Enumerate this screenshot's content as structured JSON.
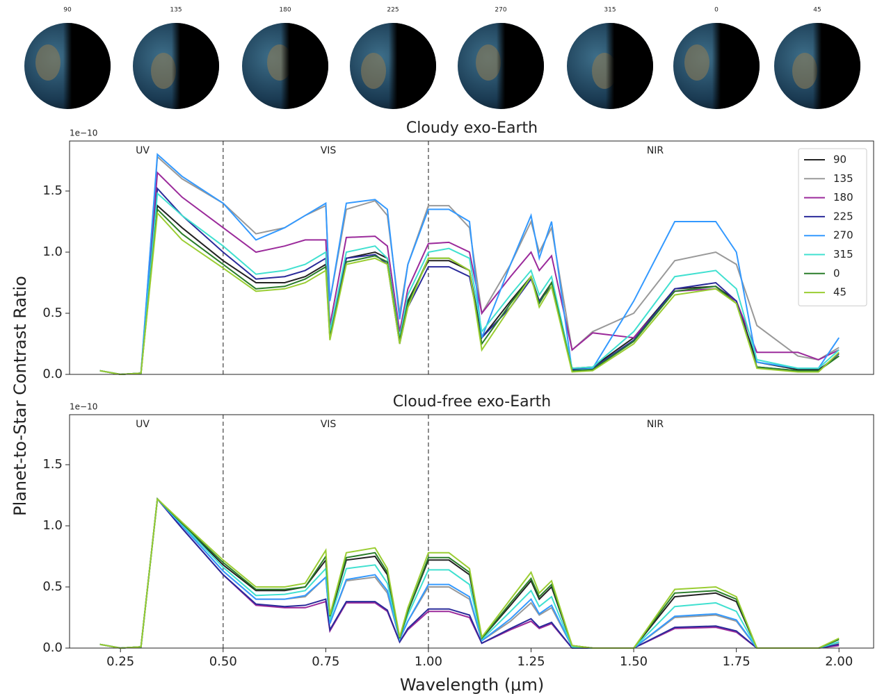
{
  "images": [
    {
      "label": "90"
    },
    {
      "label": "135"
    },
    {
      "label": "180"
    },
    {
      "label": "225"
    },
    {
      "label": "270"
    },
    {
      "label": "315"
    },
    {
      "label": "0"
    },
    {
      "label": "45"
    }
  ],
  "ylabel": "Planet-to-Star Contrast Ratio",
  "chart_data": [
    {
      "type": "line",
      "title": "Cloudy exo-Earth",
      "offset_text": "1e−10",
      "annotations": [
        "UV",
        "VIS",
        "NIR"
      ],
      "vlines": [
        0.5,
        1.0
      ],
      "legend": "upper right",
      "xlim": [
        0.126,
        2.086
      ],
      "ylim": [
        0,
        1.909
      ],
      "yticks": [
        {
          "value": 0,
          "label": "0.0"
        },
        0.5,
        {
          "value": 1,
          "label": "1.0"
        },
        1.5
      ],
      "x": [
        0.2,
        0.25,
        0.3,
        0.34,
        0.4,
        0.5,
        0.58,
        0.65,
        0.7,
        0.75,
        0.76,
        0.8,
        0.87,
        0.9,
        0.93,
        0.95,
        1.0,
        1.05,
        1.1,
        1.13,
        1.2,
        1.25,
        1.27,
        1.3,
        1.35,
        1.4,
        1.5,
        1.6,
        1.7,
        1.75,
        1.8,
        1.9,
        1.95,
        2.0
      ],
      "series": [
        {
          "name": "90",
          "color": "#222222",
          "values": [
            0.03,
            0.0,
            0.01,
            1.38,
            1.2,
            0.93,
            0.75,
            0.75,
            0.8,
            0.9,
            0.3,
            0.95,
            1.0,
            0.95,
            0.3,
            0.6,
            0.93,
            0.93,
            0.85,
            0.3,
            0.6,
            0.8,
            0.6,
            0.75,
            0.05,
            0.06,
            0.3,
            0.7,
            0.72,
            0.6,
            0.1,
            0.04,
            0.04,
            0.15
          ]
        },
        {
          "name": "135",
          "color": "#999999",
          "values": [
            0.03,
            0.0,
            0.01,
            1.78,
            1.6,
            1.4,
            1.15,
            1.2,
            1.3,
            1.38,
            0.6,
            1.35,
            1.42,
            1.3,
            0.5,
            0.9,
            1.38,
            1.38,
            1.2,
            0.5,
            0.9,
            1.25,
            1.0,
            1.2,
            0.2,
            0.35,
            0.5,
            0.93,
            1.0,
            0.9,
            0.4,
            0.15,
            0.12,
            0.22
          ]
        },
        {
          "name": "180",
          "color": "#9b2a9b",
          "values": [
            0.03,
            0.0,
            0.01,
            1.65,
            1.45,
            1.2,
            1.0,
            1.05,
            1.1,
            1.1,
            0.4,
            1.12,
            1.13,
            1.05,
            0.35,
            0.7,
            1.07,
            1.08,
            1.0,
            0.5,
            0.8,
            1.0,
            0.85,
            0.97,
            0.2,
            0.34,
            0.3,
            0.68,
            0.7,
            0.6,
            0.18,
            0.18,
            0.12,
            0.2
          ]
        },
        {
          "name": "225",
          "color": "#2a2a9a",
          "values": [
            0.03,
            0.0,
            0.01,
            1.52,
            1.3,
            1.0,
            0.78,
            0.8,
            0.85,
            0.95,
            0.3,
            0.95,
            0.98,
            0.9,
            0.25,
            0.55,
            0.88,
            0.88,
            0.8,
            0.3,
            0.55,
            0.78,
            0.6,
            0.72,
            0.04,
            0.05,
            0.28,
            0.7,
            0.75,
            0.6,
            0.06,
            0.03,
            0.03,
            0.17
          ]
        },
        {
          "name": "270",
          "color": "#3399ff",
          "values": [
            0.03,
            0.0,
            0.01,
            1.8,
            1.62,
            1.4,
            1.1,
            1.2,
            1.3,
            1.4,
            0.6,
            1.4,
            1.43,
            1.35,
            0.45,
            0.9,
            1.35,
            1.35,
            1.25,
            0.3,
            0.9,
            1.3,
            0.95,
            1.25,
            0.03,
            0.05,
            0.6,
            1.25,
            1.25,
            1.0,
            0.1,
            0.05,
            0.05,
            0.3
          ]
        },
        {
          "name": "315",
          "color": "#40e0d0",
          "values": [
            0.03,
            0.0,
            0.01,
            1.48,
            1.3,
            1.05,
            0.82,
            0.85,
            0.9,
            1.0,
            0.35,
            1.0,
            1.05,
            0.95,
            0.3,
            0.65,
            1.0,
            1.03,
            0.95,
            0.35,
            0.65,
            0.85,
            0.65,
            0.8,
            0.05,
            0.06,
            0.35,
            0.8,
            0.85,
            0.7,
            0.12,
            0.05,
            0.05,
            0.2
          ]
        },
        {
          "name": "0",
          "color": "#2a7d2a",
          "values": [
            0.03,
            0.0,
            0.01,
            1.35,
            1.15,
            0.9,
            0.7,
            0.72,
            0.78,
            0.88,
            0.3,
            0.92,
            0.97,
            0.92,
            0.28,
            0.58,
            0.95,
            0.95,
            0.85,
            0.25,
            0.58,
            0.8,
            0.58,
            0.75,
            0.03,
            0.04,
            0.27,
            0.68,
            0.72,
            0.58,
            0.06,
            0.03,
            0.03,
            0.15
          ]
        },
        {
          "name": "45",
          "color": "#9acd32",
          "values": [
            0.03,
            0.0,
            0.01,
            1.32,
            1.1,
            0.87,
            0.68,
            0.7,
            0.75,
            0.85,
            0.28,
            0.9,
            0.95,
            0.9,
            0.25,
            0.55,
            0.95,
            0.95,
            0.85,
            0.2,
            0.55,
            0.8,
            0.55,
            0.72,
            0.02,
            0.03,
            0.25,
            0.65,
            0.7,
            0.58,
            0.05,
            0.02,
            0.02,
            0.18
          ]
        }
      ]
    },
    {
      "type": "line",
      "title": "Cloud-free exo-Earth",
      "offset_text": "1e−10",
      "annotations": [
        "UV",
        "VIS",
        "NIR"
      ],
      "vlines": [
        0.5,
        1.0
      ],
      "xlabel": "Wavelength (μm)",
      "xlim": [
        0.126,
        2.086
      ],
      "ylim": [
        0,
        1.909
      ],
      "xticks": [
        0.25,
        {
          "value": 0.5,
          "label": "0.50"
        },
        0.75,
        {
          "value": 1,
          "label": "1.00"
        },
        1.25,
        {
          "value": 1.5,
          "label": "1.50"
        },
        1.75,
        {
          "value": 2,
          "label": "2.00"
        }
      ],
      "yticks": [
        {
          "value": 0,
          "label": "0.0"
        },
        0.5,
        {
          "value": 1,
          "label": "1.0"
        },
        1.5
      ],
      "x": [
        0.2,
        0.25,
        0.3,
        0.34,
        0.4,
        0.5,
        0.58,
        0.65,
        0.7,
        0.75,
        0.76,
        0.8,
        0.87,
        0.9,
        0.93,
        0.95,
        1.0,
        1.05,
        1.1,
        1.13,
        1.2,
        1.25,
        1.27,
        1.3,
        1.35,
        1.4,
        1.5,
        1.6,
        1.7,
        1.75,
        1.8,
        1.9,
        1.95,
        2.0
      ],
      "series": [
        {
          "color": "#222222",
          "values": [
            0.03,
            0.0,
            0.01,
            1.22,
            1.02,
            0.68,
            0.47,
            0.47,
            0.5,
            0.72,
            0.25,
            0.72,
            0.75,
            0.6,
            0.08,
            0.3,
            0.72,
            0.72,
            0.6,
            0.08,
            0.35,
            0.55,
            0.4,
            0.5,
            0.02,
            0.0,
            0.0,
            0.42,
            0.45,
            0.38,
            0.0,
            0.0,
            0.0,
            0.05
          ]
        },
        {
          "color": "#999999",
          "values": [
            0.03,
            0.0,
            0.01,
            1.22,
            1.0,
            0.63,
            0.4,
            0.4,
            0.42,
            0.58,
            0.2,
            0.55,
            0.58,
            0.45,
            0.07,
            0.22,
            0.5,
            0.5,
            0.4,
            0.06,
            0.22,
            0.37,
            0.27,
            0.33,
            0.01,
            0.0,
            0.0,
            0.25,
            0.27,
            0.22,
            0.0,
            0.0,
            0.0,
            0.04
          ]
        },
        {
          "color": "#9b2a9b",
          "values": [
            0.03,
            0.0,
            0.01,
            1.22,
            0.98,
            0.6,
            0.35,
            0.33,
            0.33,
            0.38,
            0.14,
            0.37,
            0.37,
            0.3,
            0.05,
            0.15,
            0.3,
            0.3,
            0.25,
            0.04,
            0.15,
            0.22,
            0.16,
            0.2,
            0.0,
            0.0,
            0.0,
            0.16,
            0.17,
            0.13,
            0.0,
            0.0,
            0.0,
            0.02
          ]
        },
        {
          "color": "#2a2a9a",
          "values": [
            0.03,
            0.0,
            0.01,
            1.22,
            0.98,
            0.6,
            0.36,
            0.34,
            0.35,
            0.4,
            0.15,
            0.38,
            0.38,
            0.31,
            0.05,
            0.16,
            0.32,
            0.32,
            0.27,
            0.04,
            0.16,
            0.24,
            0.17,
            0.21,
            0.0,
            0.0,
            0.0,
            0.17,
            0.18,
            0.14,
            0.0,
            0.0,
            0.0,
            0.03
          ]
        },
        {
          "color": "#3399ff",
          "values": [
            0.03,
            0.0,
            0.01,
            1.22,
            1.0,
            0.63,
            0.4,
            0.4,
            0.43,
            0.58,
            0.2,
            0.56,
            0.6,
            0.47,
            0.07,
            0.22,
            0.52,
            0.52,
            0.42,
            0.06,
            0.24,
            0.4,
            0.28,
            0.35,
            0.01,
            0.0,
            0.0,
            0.26,
            0.28,
            0.23,
            0.0,
            0.0,
            0.0,
            0.05
          ]
        },
        {
          "color": "#40e0d0",
          "values": [
            0.03,
            0.0,
            0.01,
            1.22,
            1.01,
            0.66,
            0.43,
            0.44,
            0.47,
            0.65,
            0.23,
            0.65,
            0.68,
            0.53,
            0.08,
            0.27,
            0.64,
            0.64,
            0.52,
            0.07,
            0.3,
            0.47,
            0.34,
            0.42,
            0.01,
            0.0,
            0.0,
            0.34,
            0.37,
            0.3,
            0.0,
            0.0,
            0.0,
            0.05
          ]
        },
        {
          "color": "#2a7d2a",
          "values": [
            0.03,
            0.0,
            0.01,
            1.22,
            1.02,
            0.7,
            0.48,
            0.48,
            0.5,
            0.75,
            0.26,
            0.74,
            0.78,
            0.62,
            0.08,
            0.3,
            0.74,
            0.74,
            0.62,
            0.08,
            0.37,
            0.57,
            0.42,
            0.52,
            0.02,
            0.0,
            0.0,
            0.45,
            0.47,
            0.4,
            0.0,
            0.0,
            0.0,
            0.07
          ]
        },
        {
          "color": "#9acd32",
          "values": [
            0.03,
            0.0,
            0.01,
            1.22,
            1.03,
            0.72,
            0.5,
            0.5,
            0.53,
            0.8,
            0.27,
            0.78,
            0.82,
            0.65,
            0.09,
            0.33,
            0.78,
            0.78,
            0.65,
            0.09,
            0.4,
            0.62,
            0.45,
            0.55,
            0.02,
            0.0,
            0.0,
            0.48,
            0.5,
            0.42,
            0.0,
            0.0,
            0.0,
            0.08
          ]
        }
      ]
    }
  ]
}
